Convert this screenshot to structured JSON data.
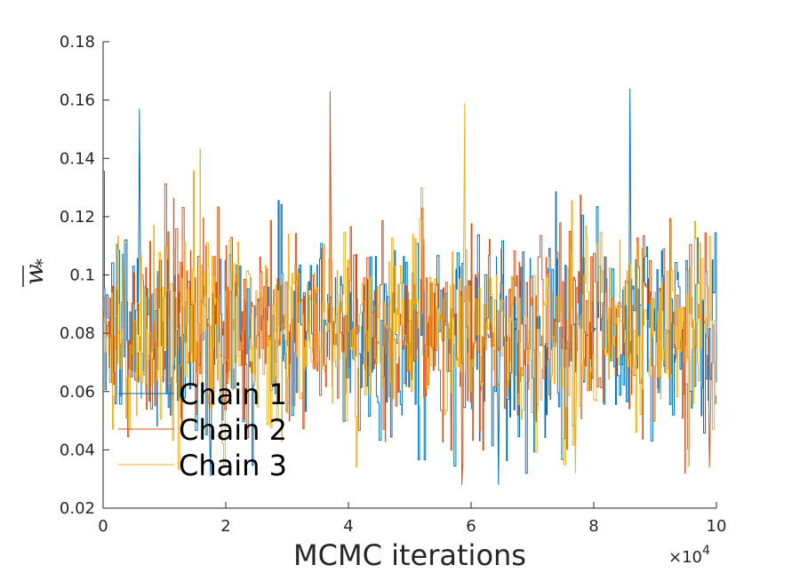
{
  "chart_data": {
    "type": "line",
    "xlabel": "MCMC iterations",
    "ylabel_base": "w",
    "ylabel_sub": "*",
    "x_exponent_label": "×10",
    "x_exponent_power": "4",
    "xlim": [
      0,
      10
    ],
    "ylim": [
      0.02,
      0.18
    ],
    "xticks": [
      0,
      2,
      4,
      6,
      8,
      10
    ],
    "xtick_labels": [
      "0",
      "2",
      "4",
      "6",
      "8",
      "10"
    ],
    "yticks": [
      0.02,
      0.04,
      0.06,
      0.08,
      0.1,
      0.12,
      0.14,
      0.16,
      0.18
    ],
    "ytick_labels": [
      "0.02",
      "0.04",
      "0.06",
      "0.08",
      "0.1",
      "0.12",
      "0.14",
      "0.16",
      "0.18"
    ],
    "grid": false,
    "legend_position": "bottom-left",
    "series": [
      {
        "name": "Chain 1",
        "color": "#0072BD"
      },
      {
        "name": "Chain 2",
        "color": "#D95319"
      },
      {
        "name": "Chain 3",
        "color": "#EDB120"
      }
    ]
  }
}
